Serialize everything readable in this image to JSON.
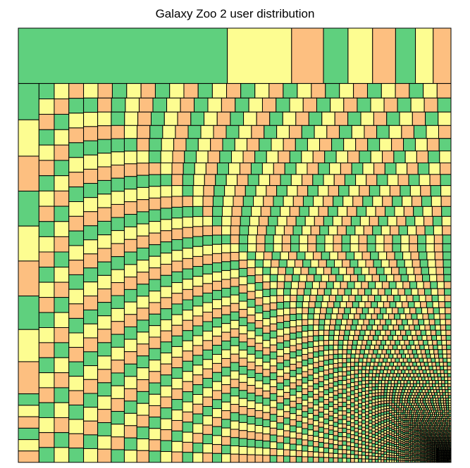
{
  "chart_data": {
    "type": "treemap",
    "title": "Galaxy Zoo 2 user distribution",
    "xlabel": "",
    "ylabel": "",
    "grid": false,
    "legend": "none",
    "palette": [
      "#5fd07e",
      "#c4a8d6",
      "#fdbf80",
      "#646464",
      "#ff0a82",
      "#fdfd91",
      "#3264b4",
      "#c85100"
    ],
    "largest_values": [
      40000,
      12300,
      6100,
      4700,
      4700,
      4400,
      3800,
      3400,
      3400,
      2600,
      2600,
      2500,
      2500,
      2500,
      2500,
      2400,
      2300,
      2300
    ],
    "tail": {
      "count": 3800,
      "start_value": 820,
      "decay": 0.9985
    }
  }
}
